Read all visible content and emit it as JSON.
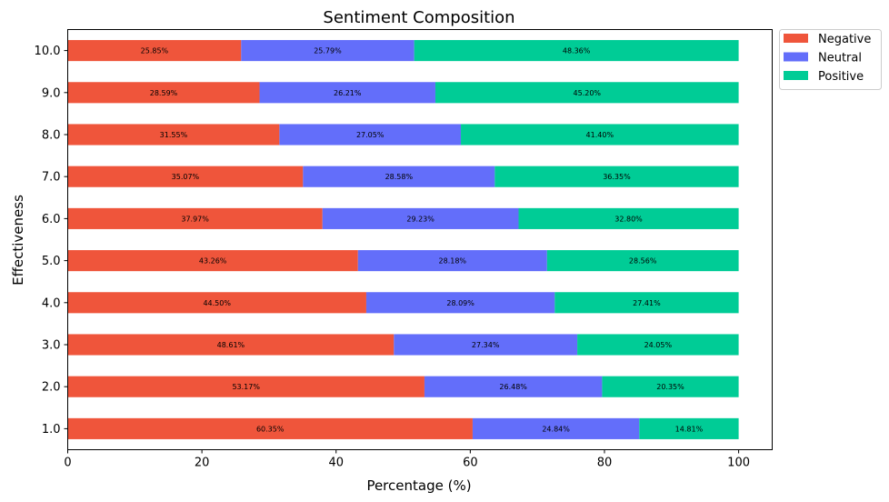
{
  "chart_data": {
    "type": "bar",
    "orientation": "horizontal",
    "stacked": true,
    "title": "Sentiment Composition",
    "xlabel": "Percentage (%)",
    "ylabel": "Effectiveness",
    "xlim": [
      0,
      105
    ],
    "xticks": [
      "0",
      "20",
      "40",
      "60",
      "80",
      "100"
    ],
    "categories": [
      "1.0",
      "2.0",
      "3.0",
      "4.0",
      "5.0",
      "6.0",
      "7.0",
      "8.0",
      "9.0",
      "10.0"
    ],
    "series": [
      {
        "name": "Negative",
        "color": "#EF553B",
        "values": [
          60.35,
          53.17,
          48.61,
          44.5,
          43.26,
          37.97,
          35.07,
          31.55,
          28.59,
          25.85
        ]
      },
      {
        "name": "Neutral",
        "color": "#636EFA",
        "values": [
          24.84,
          26.48,
          27.34,
          28.09,
          28.18,
          29.23,
          28.58,
          27.05,
          26.21,
          25.79
        ]
      },
      {
        "name": "Positive",
        "color": "#00CC96",
        "values": [
          14.81,
          20.35,
          24.05,
          27.41,
          28.56,
          32.8,
          36.35,
          41.4,
          45.2,
          48.36
        ]
      }
    ],
    "grid": false,
    "legend": "outside-top-right"
  }
}
